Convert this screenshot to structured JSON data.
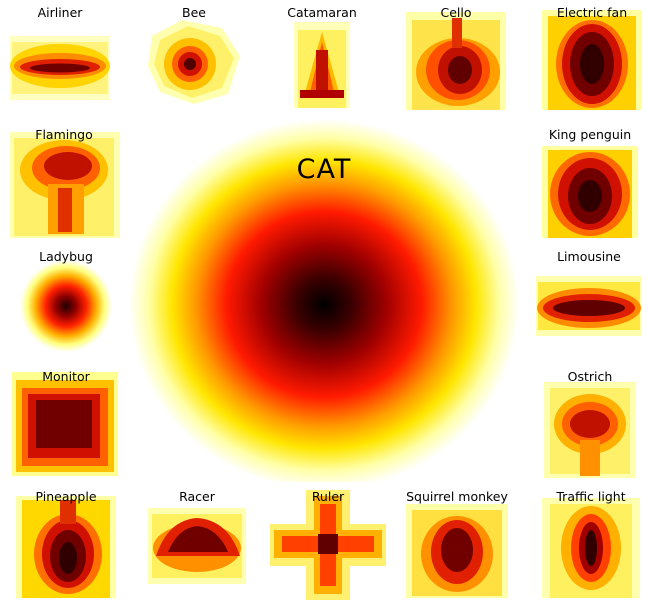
{
  "center": {
    "title": "CAT",
    "colors": [
      "#000000",
      "#b00000",
      "#ff1a00",
      "#ffcc00",
      "#ffffa0",
      "#ffffff"
    ]
  },
  "tiles": [
    {
      "id": "airliner",
      "label": "Airliner",
      "shape": "airliner"
    },
    {
      "id": "bee",
      "label": "Bee",
      "shape": "bee"
    },
    {
      "id": "catamaran",
      "label": "Catamaran",
      "shape": "catamaran"
    },
    {
      "id": "cello",
      "label": "Cello",
      "shape": "cello"
    },
    {
      "id": "electric-fan",
      "label": "Electric fan",
      "shape": "fan"
    },
    {
      "id": "flamingo",
      "label": "Flamingo",
      "shape": "flamingo"
    },
    {
      "id": "king-penguin",
      "label": "King penguin",
      "shape": "penguin"
    },
    {
      "id": "ladybug",
      "label": "Ladybug",
      "shape": "ladybug"
    },
    {
      "id": "limousine",
      "label": "Limousine",
      "shape": "limo"
    },
    {
      "id": "monitor",
      "label": "Monitor",
      "shape": "monitor"
    },
    {
      "id": "ostrich",
      "label": "Ostrich",
      "shape": "ostrich"
    },
    {
      "id": "pineapple",
      "label": "Pineapple",
      "shape": "pineapple"
    },
    {
      "id": "racer",
      "label": "Racer",
      "shape": "racer"
    },
    {
      "id": "ruler",
      "label": "Ruler",
      "shape": "ruler"
    },
    {
      "id": "squirrel-monkey",
      "label": "Squirrel monkey",
      "shape": "monkey"
    },
    {
      "id": "traffic-light",
      "label": "Traffic light",
      "shape": "traffic"
    }
  ]
}
